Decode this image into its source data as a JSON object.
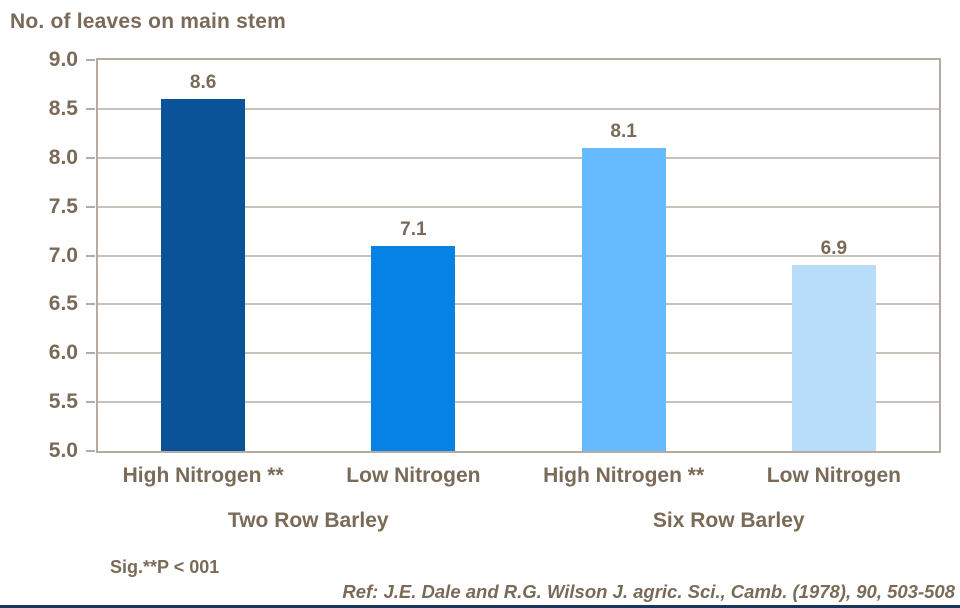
{
  "chart_data": {
    "type": "bar",
    "title": "No. of leaves on main stem",
    "xlabel": "",
    "ylabel": "No. of leaves on main stem",
    "ylim": [
      5.0,
      9.0
    ],
    "ytick_step": 0.5,
    "yticks": [
      "9.0",
      "8.5",
      "8.0",
      "7.5",
      "7.0",
      "6.5",
      "6.0",
      "5.5",
      "5.0"
    ],
    "grid": true,
    "legend_position": "none",
    "categories": [
      "High Nitrogen **",
      "Low Nitrogen",
      "High Nitrogen **",
      "Low Nitrogen"
    ],
    "groups": [
      "Two Row Barley",
      "Six Row Barley"
    ],
    "bars": [
      {
        "label": "High Nitrogen **",
        "group": "Two Row Barley",
        "value": 8.6,
        "value_label": "8.6",
        "color": "#0A5398"
      },
      {
        "label": "Low Nitrogen",
        "group": "Two Row Barley",
        "value": 7.1,
        "value_label": "7.1",
        "color": "#0582E3"
      },
      {
        "label": "High Nitrogen **",
        "group": "Six Row Barley",
        "value": 8.1,
        "value_label": "8.1",
        "color": "#66BBFF"
      },
      {
        "label": "Low Nitrogen",
        "group": "Six Row Barley",
        "value": 6.9,
        "value_label": "6.9",
        "color": "#B8DDFA"
      }
    ]
  },
  "notes": {
    "significance": "Sig.**P < 001",
    "reference": "Ref: J.E. Dale and R.G. Wilson J. agric. Sci., Camb. (1978), 90, 503-508"
  },
  "colors": {
    "text": "#7A6A58",
    "plot_border": "#B5ABA2",
    "gridline": "#C9C2BB",
    "accent_bottom_line": "#17365D"
  }
}
